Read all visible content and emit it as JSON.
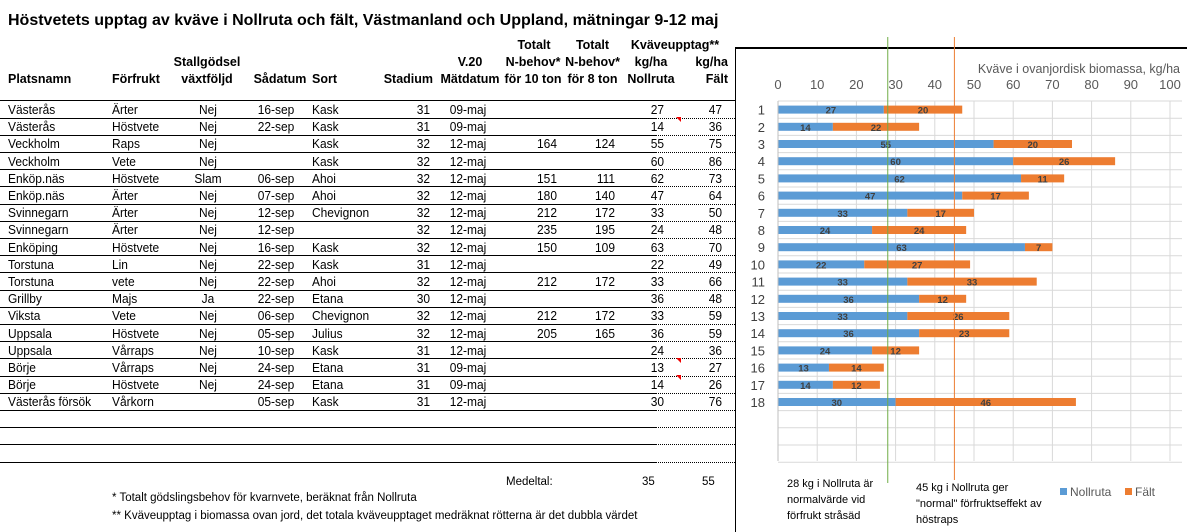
{
  "title": "Höstvetets upptag av kväve i Nollruta och fält, Västmanland och Uppland, mätningar 9-12 maj",
  "headers": {
    "platsnamn": "Platsnamn",
    "forfrukt": "Förfrukt",
    "stallgodsel1": "Stallgödsel",
    "stallgodsel2": "växtföljd",
    "sadatum": "Sådatum",
    "sort": "Sort",
    "stadium": "Stadium",
    "v20": "V.20",
    "matdatum": "Mätdatum",
    "tot10_1": "Totalt",
    "tot10_2": "N-behov*",
    "tot10_3": "för 10 ton",
    "tot8_1": "Totalt",
    "tot8_2": "N-behov*",
    "tot8_3": "för 8 ton",
    "kv1": "Kväveupptag**",
    "noll1": "kg/ha",
    "noll2": "Nollruta",
    "falt1": "kg/ha",
    "falt2": "Fält"
  },
  "rows": [
    [
      "Västerås",
      "Ärter",
      "Nej",
      "16-sep",
      "Kask",
      "31",
      "09-maj",
      "",
      "",
      "27",
      "47"
    ],
    [
      "Västerås",
      "Höstvete",
      "Nej",
      "22-sep",
      "Kask",
      "31",
      "09-maj",
      "",
      "",
      "14",
      "36"
    ],
    [
      "Veckholm",
      "Raps",
      "Nej",
      "",
      "Kask",
      "32",
      "12-maj",
      "164",
      "124",
      "55",
      "75"
    ],
    [
      "Veckholm",
      "Vete",
      "Nej",
      "",
      "Kask",
      "32",
      "12-maj",
      "",
      "",
      "60",
      "86"
    ],
    [
      "Enköp.näs",
      "Höstvete",
      "Slam",
      "06-sep",
      "Ahoi",
      "32",
      "12-maj",
      "151",
      "111",
      "62",
      "73"
    ],
    [
      "Enköp.näs",
      "Ärter",
      "Nej",
      "07-sep",
      "Ahoi",
      "32",
      "12-maj",
      "180",
      "140",
      "47",
      "64"
    ],
    [
      "Svinnegarn",
      "Ärter",
      "Nej",
      "12-sep",
      "Chevignon",
      "32",
      "12-maj",
      "212",
      "172",
      "33",
      "50"
    ],
    [
      "Svinnegarn",
      "Ärter",
      "Nej",
      "12-sep",
      "",
      "32",
      "12-maj",
      "235",
      "195",
      "24",
      "48"
    ],
    [
      "Enköping",
      "Höstvete",
      "Nej",
      "16-sep",
      "Kask",
      "32",
      "12-maj",
      "150",
      "109",
      "63",
      "70"
    ],
    [
      "Torstuna",
      "Lin",
      "Nej",
      "22-sep",
      "Kask",
      "31",
      "12-maj",
      "",
      "",
      "22",
      "49"
    ],
    [
      "Torstuna",
      "vete",
      "Nej",
      "22-sep",
      "Ahoi",
      "32",
      "12-maj",
      "212",
      "172",
      "33",
      "66"
    ],
    [
      "Grillby",
      "Majs",
      "Ja",
      "22-sep",
      "Etana",
      "30",
      "12-maj",
      "",
      "",
      "36",
      "48"
    ],
    [
      "Viksta",
      "Vete",
      "Nej",
      "06-sep",
      "Chevignon",
      "32",
      "12-maj",
      "212",
      "172",
      "33",
      "59"
    ],
    [
      "Uppsala",
      "Höstvete",
      "Nej",
      "05-sep",
      "Julius",
      "32",
      "12-maj",
      "205",
      "165",
      "36",
      "59"
    ],
    [
      "Uppsala",
      "Vårraps",
      "Nej",
      "10-sep",
      "Kask",
      "31",
      "12-maj",
      "",
      "",
      "24",
      "36"
    ],
    [
      "Börje",
      "Vårraps",
      "Nej",
      "24-sep",
      "Etana",
      "31",
      "09-maj",
      "",
      "",
      "13",
      "27"
    ],
    [
      "Börje",
      "Höstvete",
      "Nej",
      "24-sep",
      "Etana",
      "31",
      "09-maj",
      "",
      "",
      "14",
      "26"
    ],
    [
      "Västerås försök",
      "Vårkorn",
      "",
      "05-sep",
      "Kask",
      "31",
      "12-maj",
      "",
      "",
      "30",
      "76"
    ]
  ],
  "medeltal": {
    "label": "Medeltal:",
    "nollruta": "35",
    "falt": "55"
  },
  "footnotes": [
    "* Totalt gödslingsbehov för kvarnvete, beräknat från Nollruta",
    "** Kväveupptag i biomassa ovan jord, det totala kväveupptaget medräknat rötterna är det dubbla värdet"
  ],
  "chart_data": {
    "type": "bar",
    "stacked": true,
    "orientation": "horizontal",
    "title": "Kväve i ovanjordisk biomassa, kg/ha",
    "categories": [
      "1",
      "2",
      "3",
      "4",
      "5",
      "6",
      "7",
      "8",
      "9",
      "10",
      "11",
      "12",
      "13",
      "14",
      "15",
      "16",
      "17",
      "18"
    ],
    "series": [
      {
        "name": "Nollruta",
        "color": "#5b9bd5",
        "values": [
          27,
          14,
          55,
          60,
          62,
          47,
          33,
          24,
          63,
          22,
          33,
          36,
          33,
          36,
          24,
          13,
          14,
          30
        ]
      },
      {
        "name": "Fält",
        "color": "#ed7d31",
        "values": [
          20,
          22,
          20,
          26,
          11,
          17,
          17,
          24,
          7,
          27,
          33,
          12,
          26,
          23,
          12,
          14,
          12,
          46
        ]
      }
    ],
    "xlim": [
      0,
      100
    ],
    "xticks": [
      "0",
      "10",
      "20",
      "30",
      "40",
      "50",
      "60",
      "70",
      "80",
      "90",
      "100"
    ],
    "grid": true,
    "legend": "bottom-right",
    "reference_lines": [
      {
        "value": 28,
        "color": "#70ad47",
        "label": "28 kg i Nollruta är normalvärde vid förfrukt stråsäd"
      },
      {
        "value": 45,
        "color": "#ed7d31",
        "label": "45 kg i Nollruta ger \"normal\" förfruktseffekt av höstraps"
      }
    ]
  }
}
